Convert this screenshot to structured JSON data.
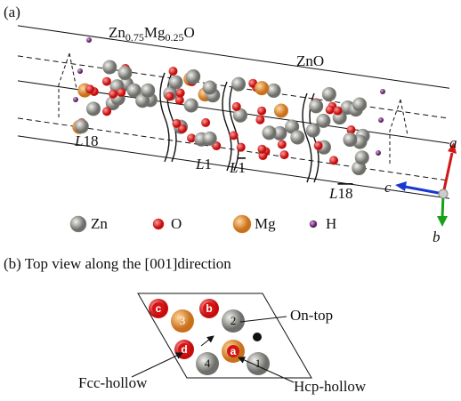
{
  "panel_a": {
    "label": "(a)",
    "formula": [
      "Zn",
      "0.75",
      "Mg",
      "0.25",
      "O"
    ],
    "pure": "ZnO",
    "layers": [
      {
        "prefix": "L",
        "index": "18",
        "bar": false
      },
      {
        "prefix": "L",
        "index": "1",
        "bar": false
      },
      {
        "prefix": "L",
        "index": "1",
        "bar": true
      },
      {
        "prefix": "L",
        "index": "18",
        "bar": true
      }
    ],
    "axes": {
      "a": "a",
      "b": "b",
      "c": "c"
    },
    "legend": [
      {
        "name": "Zn",
        "color": "#8c8c88"
      },
      {
        "name": "O",
        "color": "#e02020"
      },
      {
        "name": "Mg",
        "color": "#e08a28"
      },
      {
        "name": "H",
        "color": "#7a3a80"
      }
    ]
  },
  "panel_b": {
    "title": "(b) Top view along the [001]direction",
    "atoms": [
      "3",
      "b",
      "2",
      "c",
      "d",
      "4",
      "a",
      "1"
    ],
    "sites": {
      "on_top": "On-top",
      "fcc": "Fcc-hollow",
      "hcp": "Hcp-hollow"
    }
  }
}
